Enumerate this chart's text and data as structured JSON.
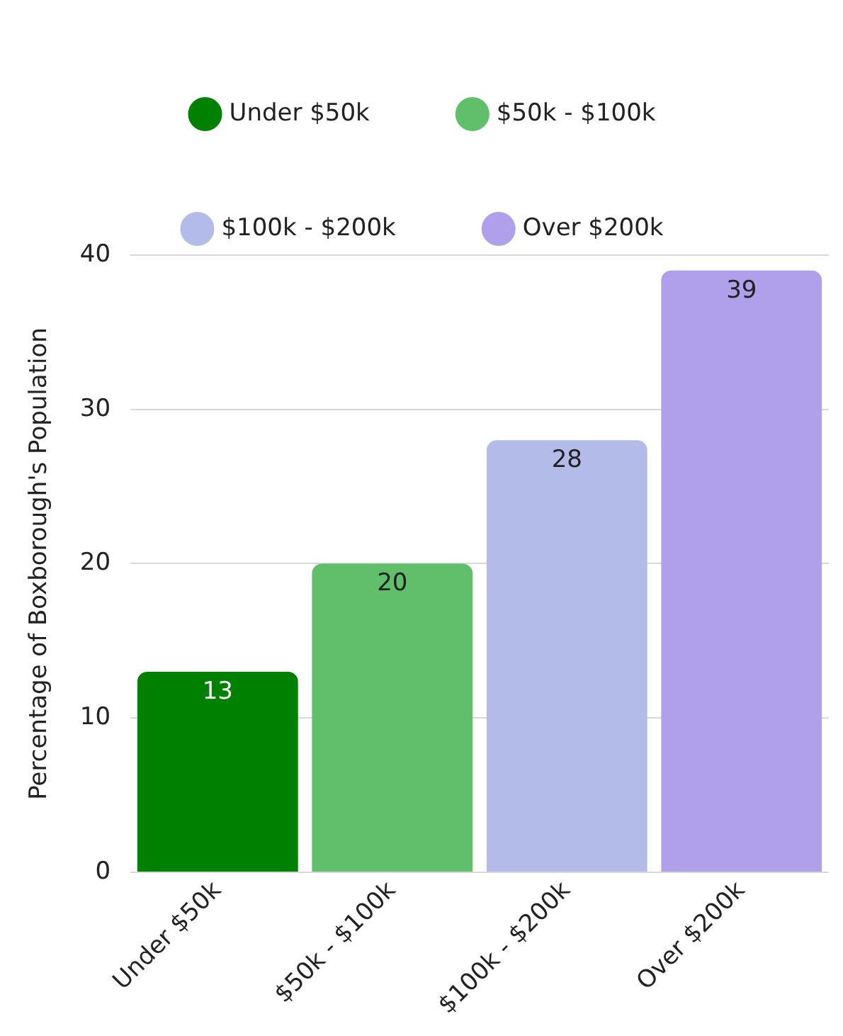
{
  "chart_data": {
    "type": "bar",
    "ylabel": "Percentage of Boxborough's Population",
    "categories": [
      "Under $50k",
      "$50k - $100k",
      "$100k - $200k",
      "Over $200k"
    ],
    "series": [
      {
        "name": "Under $50k",
        "color": "#008000",
        "values": [
          13,
          null,
          null,
          null
        ]
      },
      {
        "name": "$50k - $100k",
        "color": "#5fbf6a",
        "values": [
          null,
          20,
          null,
          null
        ]
      },
      {
        "name": "$100k - $200k",
        "color": "#b3bce9",
        "values": [
          null,
          null,
          28,
          null
        ]
      },
      {
        "name": "Over $200k",
        "color": "#b0a0ec",
        "values": [
          null,
          null,
          null,
          39
        ]
      }
    ],
    "ylim": [
      0,
      40
    ],
    "yticks": [
      0,
      10,
      20,
      30,
      40
    ],
    "grid": "y",
    "legend": "top",
    "data_labels": true
  }
}
